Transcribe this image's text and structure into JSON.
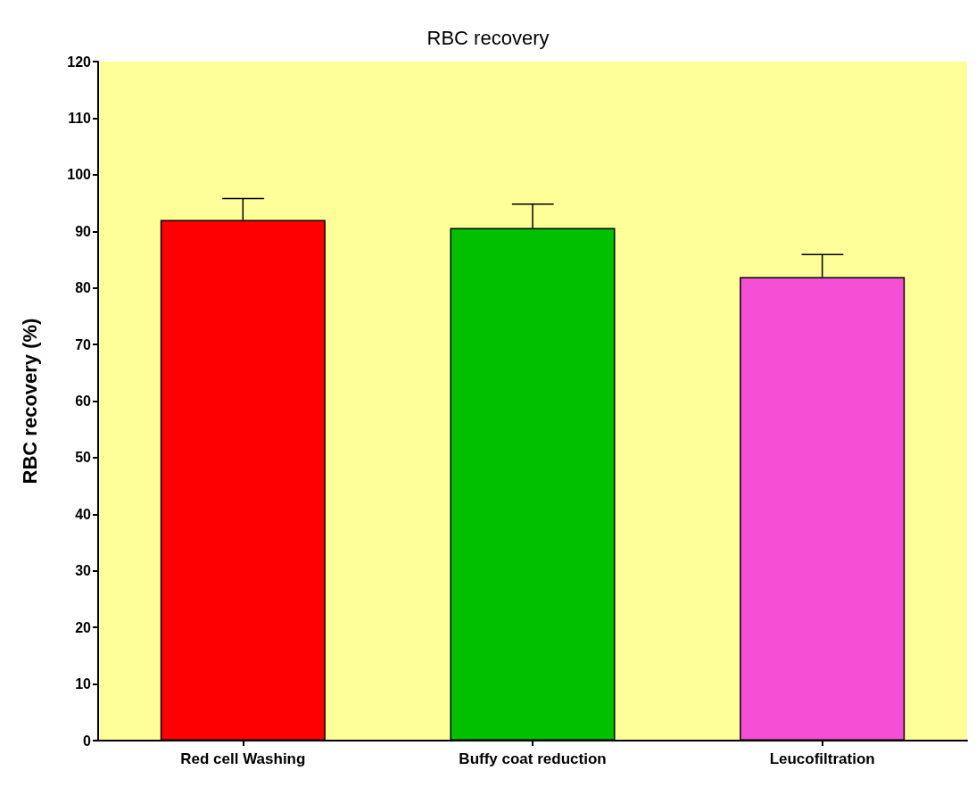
{
  "chart_data": {
    "type": "bar",
    "title": "RBC recovery",
    "ylabel": "RBC recovery (%)",
    "categories": [
      "Red cell Washing",
      "Buffy coat reduction",
      "Leucofiltration"
    ],
    "values": [
      92,
      90.6,
      81.9
    ],
    "colors": [
      "#ff0000",
      "#00c000",
      "#f550d5"
    ],
    "errors": [
      [
        92,
        95.8
      ],
      [
        90.6,
        94.8
      ],
      [
        81.9,
        85.9
      ]
    ],
    "ylim": [
      0,
      120
    ],
    "yticks": [
      0,
      10,
      20,
      30,
      40,
      50,
      60,
      70,
      80,
      90,
      100,
      110,
      120
    ],
    "grid": false
  }
}
